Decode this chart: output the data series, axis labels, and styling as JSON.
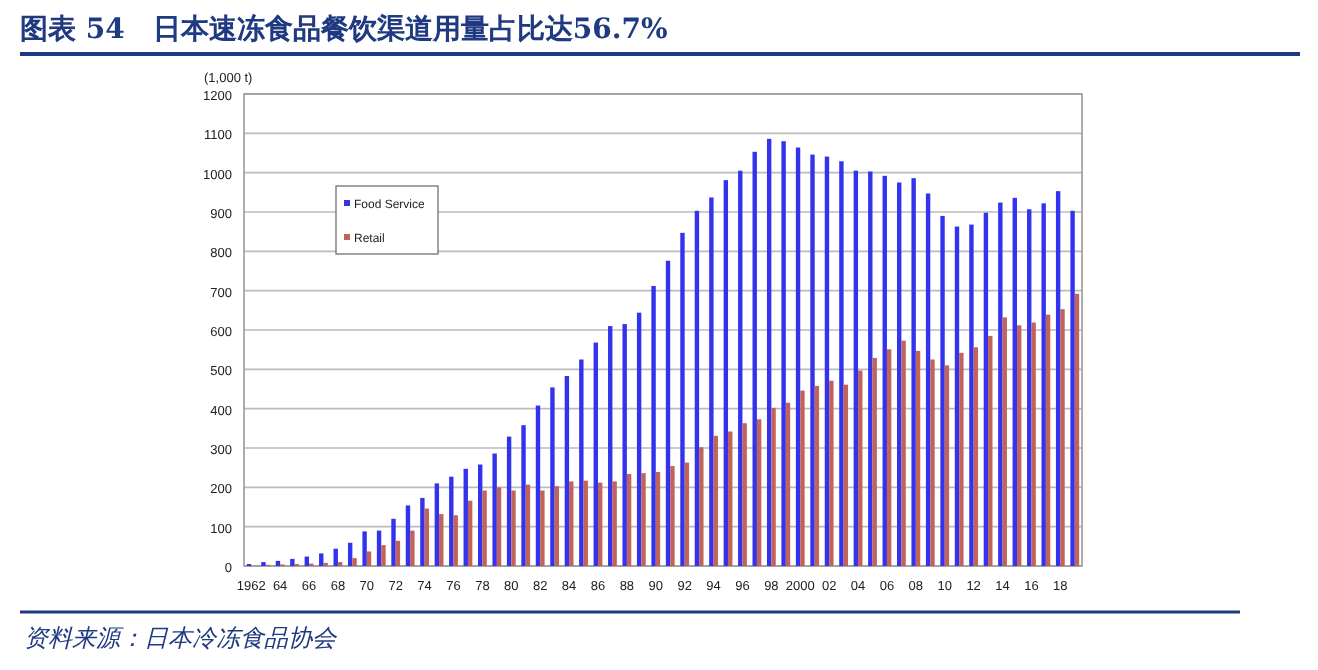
{
  "chart_data": {
    "type": "bar",
    "title": "图表 54　日本速冻食品餐饮渠道用量占比达56.7%",
    "ylabel": "(1,000 t)",
    "annotations": [
      "资料来源：日本冷冻食品协会"
    ],
    "categories": [
      "1962",
      null,
      "64",
      null,
      "66",
      null,
      "68",
      null,
      "70",
      null,
      "72",
      null,
      "74",
      null,
      "76",
      null,
      "78",
      null,
      "80",
      null,
      "82",
      null,
      "84",
      null,
      "86",
      null,
      "88",
      null,
      "90",
      null,
      "92",
      null,
      "94",
      null,
      "96",
      null,
      "98",
      null,
      "2000",
      null,
      "02",
      null,
      "04",
      null,
      "06",
      null,
      "08",
      null,
      "10",
      null,
      "12",
      null,
      "14",
      null,
      "16",
      null,
      "18",
      null
    ],
    "series": [
      {
        "name": "Food Service",
        "color": "#3333ee",
        "values": [
          5,
          10,
          13,
          18,
          24,
          32,
          44,
          59,
          88,
          90,
          120,
          154,
          173,
          210,
          227,
          247,
          258,
          286,
          329,
          358,
          408,
          454,
          483,
          525,
          568,
          610,
          615,
          644,
          712,
          776,
          847,
          903,
          937,
          981,
          1005,
          1053,
          1086,
          1080,
          1064,
          1046,
          1041,
          1029,
          1005,
          1003,
          992,
          975,
          986,
          947,
          890,
          863,
          868,
          898,
          924,
          936,
          907,
          922,
          953,
          903
        ]
      },
      {
        "name": "Retail",
        "color": "#c0645a",
        "values": [
          null,
          3,
          4,
          5,
          6,
          8,
          10,
          20,
          37,
          53,
          64,
          90,
          146,
          132,
          129,
          166,
          192,
          200,
          192,
          207,
          192,
          203,
          215,
          217,
          212,
          215,
          234,
          236,
          239,
          254,
          263,
          302,
          331,
          342,
          363,
          373,
          402,
          415,
          446,
          458,
          471,
          461,
          497,
          529,
          551,
          573,
          547,
          525,
          510,
          542,
          556,
          585,
          632,
          612,
          619,
          639,
          653,
          692
        ]
      }
    ],
    "ylim": [
      0,
      1200
    ],
    "yticks": [
      0,
      100,
      200,
      300,
      400,
      500,
      600,
      700,
      800,
      900,
      1000,
      1100,
      1200
    ],
    "grid": "y",
    "legend": "top left"
  }
}
